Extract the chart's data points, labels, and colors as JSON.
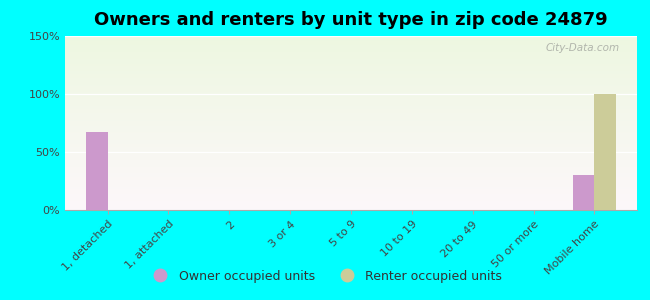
{
  "title": "Owners and renters by unit type in zip code 24879",
  "categories": [
    "1, detached",
    "1, attached",
    "2",
    "3 or 4",
    "5 to 9",
    "10 to 19",
    "20 to 49",
    "50 or more",
    "Mobile home"
  ],
  "owner_values": [
    67,
    0,
    0,
    0,
    0,
    0,
    0,
    0,
    30
  ],
  "renter_values": [
    0,
    0,
    0,
    0,
    0,
    0,
    0,
    0,
    100
  ],
  "owner_color": "#cc99cc",
  "renter_color": "#cccc99",
  "background_color": "#00ffff",
  "ylim": [
    0,
    150
  ],
  "yticks": [
    0,
    50,
    100,
    150
  ],
  "ytick_labels": [
    "0%",
    "50%",
    "100%",
    "150%"
  ],
  "bar_width": 0.35,
  "title_fontsize": 13,
  "watermark": "City-Data.com"
}
